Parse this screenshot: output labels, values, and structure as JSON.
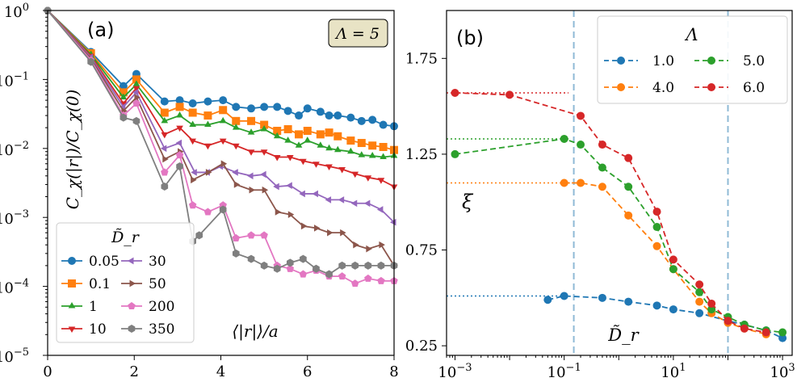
{
  "chart_data": [
    {
      "panel": "(a)",
      "type": "line",
      "xscale": "linear",
      "yscale": "log",
      "xlim": [
        0,
        8
      ],
      "ylim": [
        1e-05,
        1
      ],
      "x_ticks": [
        "0",
        "2",
        "4",
        "6",
        "8"
      ],
      "y_ticks": [
        "10^-5",
        "10^-4",
        "10^-3",
        "10^-2",
        "10^-1",
        "10^0"
      ],
      "ylabel": "C_χ(|r|)/C_χ(0)",
      "xlabel": "⟨|r|⟩/a",
      "annotation": "Λ = 5",
      "legend_title": "D̃_r",
      "legend_position": "bottom-left",
      "series": [
        {
          "name": "0.05",
          "color": "#1f77b4",
          "marker": "circle",
          "x": [
            0,
            1,
            1.75,
            2.05,
            2.7,
            3.05,
            3.35,
            3.7,
            4.05,
            4.35,
            4.7,
            5.0,
            5.3,
            5.55,
            5.8,
            6.0,
            6.3,
            6.5,
            6.7,
            7.0,
            7.25,
            7.5,
            7.75,
            8.0
          ],
          "y": [
            1.0,
            0.25,
            0.08,
            0.12,
            0.048,
            0.05,
            0.045,
            0.048,
            0.05,
            0.04,
            0.038,
            0.04,
            0.04,
            0.035,
            0.03,
            0.038,
            0.034,
            0.03,
            0.03,
            0.028,
            0.025,
            0.026,
            0.022,
            0.021
          ]
        },
        {
          "name": "0.1",
          "color": "#ff7f0e",
          "marker": "square",
          "x": [
            0,
            1,
            1.75,
            2.05,
            2.7,
            3.05,
            3.35,
            3.7,
            4.05,
            4.35,
            4.7,
            5.0,
            5.3,
            5.55,
            5.8,
            6.0,
            6.3,
            6.5,
            6.7,
            7.0,
            7.25,
            7.5,
            7.75,
            8.0
          ],
          "y": [
            1.0,
            0.24,
            0.065,
            0.1,
            0.033,
            0.04,
            0.033,
            0.03,
            0.036,
            0.025,
            0.025,
            0.022,
            0.018,
            0.019,
            0.016,
            0.018,
            0.016,
            0.017,
            0.015,
            0.013,
            0.012,
            0.011,
            0.0105,
            0.0095
          ]
        },
        {
          "name": "1",
          "color": "#2ca02c",
          "marker": "triangle-up",
          "x": [
            0,
            1,
            1.75,
            2.05,
            2.7,
            3.05,
            3.35,
            3.7,
            4.05,
            4.35,
            4.7,
            5.0,
            5.3,
            5.55,
            5.8,
            6.0,
            6.3,
            6.5,
            6.7,
            7.0,
            7.25,
            7.5,
            7.75,
            8.0
          ],
          "y": [
            1.0,
            0.23,
            0.055,
            0.085,
            0.025,
            0.03,
            0.022,
            0.022,
            0.025,
            0.02,
            0.017,
            0.019,
            0.015,
            0.013,
            0.011,
            0.013,
            0.011,
            0.01,
            0.0095,
            0.009,
            0.008,
            0.0078,
            0.0075,
            0.0078
          ]
        },
        {
          "name": "10",
          "color": "#d62728",
          "marker": "triangle-down",
          "x": [
            0,
            1,
            1.75,
            2.05,
            2.7,
            3.05,
            3.35,
            3.7,
            4.05,
            4.35,
            4.7,
            5.0,
            5.3,
            5.6,
            5.9,
            6.2,
            6.5,
            6.8,
            7.1,
            7.4,
            7.7,
            8.0
          ],
          "y": [
            1.0,
            0.22,
            0.045,
            0.075,
            0.016,
            0.02,
            0.013,
            0.011,
            0.013,
            0.011,
            0.009,
            0.009,
            0.0075,
            0.0075,
            0.0066,
            0.006,
            0.0055,
            0.005,
            0.0043,
            0.0038,
            0.0035,
            0.0028
          ]
        },
        {
          "name": "30",
          "color": "#9467bd",
          "marker": "triangle-left",
          "x": [
            0,
            1,
            1.75,
            2.05,
            2.7,
            3.05,
            3.4,
            3.7,
            4.0,
            4.35,
            4.7,
            5.0,
            5.3,
            5.6,
            5.9,
            6.2,
            6.5,
            6.8,
            7.1,
            7.4,
            7.7,
            8.0
          ],
          "y": [
            1.0,
            0.21,
            0.04,
            0.065,
            0.01,
            0.012,
            0.0045,
            0.0045,
            0.0055,
            0.0045,
            0.004,
            0.0042,
            0.0028,
            0.0029,
            0.0022,
            0.0022,
            0.0018,
            0.0018,
            0.0016,
            0.0016,
            0.0013,
            0.00085
          ]
        },
        {
          "name": "50",
          "color": "#8c564b",
          "marker": "triangle-right",
          "x": [
            0,
            1,
            1.75,
            2.05,
            2.7,
            3.05,
            3.35,
            3.7,
            4.05,
            4.35,
            4.7,
            5.0,
            5.3,
            5.6,
            5.9,
            6.2,
            6.5,
            6.8,
            7.1,
            7.4,
            7.7,
            8.0
          ],
          "y": [
            1.0,
            0.2,
            0.035,
            0.055,
            0.007,
            0.009,
            0.0035,
            0.0045,
            0.006,
            0.003,
            0.0025,
            0.0025,
            0.0012,
            0.0011,
            0.00075,
            0.0007,
            0.0006,
            0.0006,
            0.0004,
            0.00035,
            0.0004,
            0.0002
          ]
        },
        {
          "name": "200",
          "color": "#e377c2",
          "marker": "pentagon",
          "x": [
            0,
            1,
            1.75,
            2.05,
            2.7,
            3.05,
            3.35,
            3.7,
            4.05,
            4.35,
            4.7,
            5.0,
            5.3,
            5.6,
            5.9,
            6.2,
            6.5,
            6.8,
            7.1,
            7.4,
            7.7,
            8.0
          ],
          "y": [
            1.0,
            0.19,
            0.03,
            0.045,
            0.0045,
            0.008,
            0.0015,
            0.0012,
            0.0015,
            0.0005,
            0.00055,
            0.00055,
            0.0002,
            0.00018,
            0.00015,
            0.00017,
            0.00014,
            0.00014,
            0.00011,
            0.00013,
            0.00012,
            0.00012
          ]
        },
        {
          "name": "350",
          "color": "#7f7f7f",
          "marker": "hexagon",
          "x": [
            0,
            1,
            1.75,
            2.05,
            2.7,
            3.05,
            3.35,
            3.5,
            4.05,
            4.35,
            4.7,
            5.0,
            5.3,
            5.6,
            5.9,
            6.2,
            6.5,
            6.8,
            7.1,
            7.4,
            7.7,
            8.0
          ],
          "y": [
            1.0,
            0.18,
            0.028,
            0.025,
            0.0028,
            0.0055,
            0.00045,
            0.00055,
            0.0013,
            0.0003,
            0.00025,
            0.0002,
            0.00018,
            0.00022,
            0.00025,
            0.00018,
            0.00015,
            0.0002,
            0.0002,
            0.0002,
            0.0002,
            0.0002
          ]
        }
      ]
    },
    {
      "panel": "(b)",
      "type": "line",
      "xscale": "log",
      "yscale": "linear",
      "xlim": [
        0.0007,
        1500
      ],
      "ylim": [
        0.2,
        2.0
      ],
      "x_ticks": [
        "10^-3",
        "10^-1",
        "10^1",
        "10^3"
      ],
      "y_ticks": [
        "0.25",
        "0.75",
        "1.25",
        "1.75"
      ],
      "ylabel": "ξ",
      "xlabel": "D̃_r",
      "legend_title": "Λ",
      "legend_position": "top-right",
      "vertical_dashed_lines_x": [
        0.15,
        100
      ],
      "series": [
        {
          "name": "1.0",
          "color": "#1f77b4",
          "x": [
            0.05,
            0.1,
            0.5,
            1.5,
            5,
            10,
            30,
            100,
            200,
            500,
            1000
          ],
          "y": [
            0.49,
            0.51,
            0.5,
            0.48,
            0.46,
            0.44,
            0.42,
            0.38,
            0.36,
            0.33,
            0.29
          ],
          "dotted_reference_y": 0.51
        },
        {
          "name": "4.0",
          "color": "#ff7f0e",
          "x": [
            0.1,
            0.2,
            0.5,
            1.5,
            5,
            10,
            30,
            50,
            100,
            200,
            500
          ],
          "y": [
            1.1,
            1.1,
            1.08,
            0.93,
            0.77,
            0.65,
            0.48,
            0.42,
            0.37,
            0.34,
            0.31
          ],
          "dotted_reference_y": 1.1
        },
        {
          "name": "5.0",
          "color": "#2ca02c",
          "x": [
            0.001,
            0.1,
            0.2,
            0.5,
            1.5,
            5,
            10,
            30,
            50,
            100,
            200,
            500,
            1000
          ],
          "y": [
            1.25,
            1.33,
            1.3,
            1.18,
            1.08,
            0.87,
            0.65,
            0.53,
            0.44,
            0.4,
            0.36,
            0.33,
            0.32
          ],
          "dotted_reference_y": 1.33
        },
        {
          "name": "6.0",
          "color": "#d62728",
          "x": [
            0.001,
            0.01,
            0.2,
            0.5,
            1.5,
            5,
            10,
            30,
            50,
            100,
            200,
            500
          ],
          "y": [
            1.57,
            1.56,
            1.45,
            1.3,
            1.23,
            0.95,
            0.7,
            0.57,
            0.47,
            0.38,
            0.34,
            0.32
          ],
          "dotted_reference_y": 1.57
        }
      ]
    }
  ]
}
